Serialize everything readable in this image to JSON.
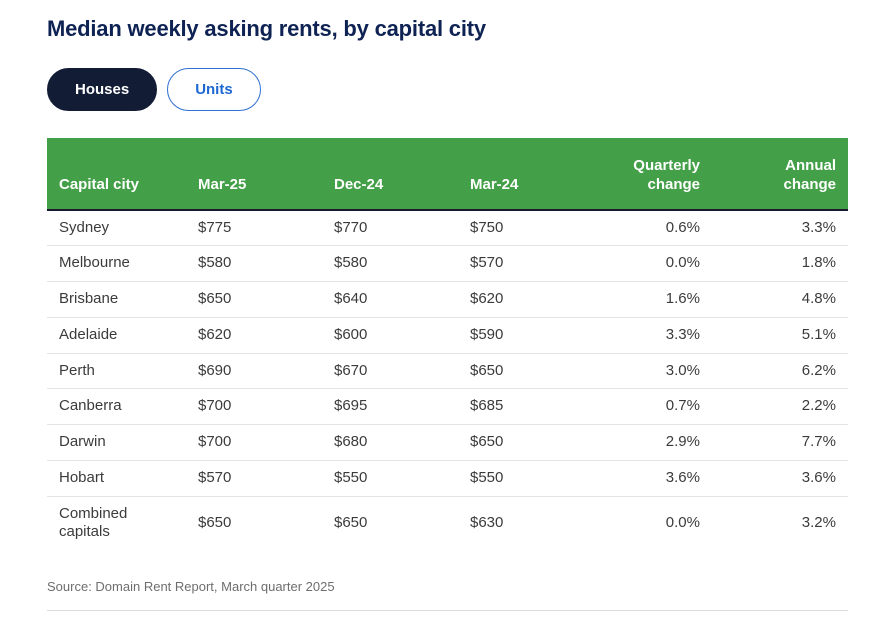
{
  "page": {
    "title": "Median weekly asking rents, by capital city",
    "source": "Source: Domain Rent Report, March quarter 2025"
  },
  "toggle": {
    "houses_label": "Houses",
    "units_label": "Units",
    "active": "Houses"
  },
  "table": {
    "columns": [
      "Capital city",
      "Mar-25",
      "Dec-24",
      "Mar-24",
      "Quarterly change",
      "Annual change"
    ],
    "rows": [
      [
        "Sydney",
        "$775",
        "$770",
        "$750",
        "0.6%",
        "3.3%"
      ],
      [
        "Melbourne",
        "$580",
        "$580",
        "$570",
        "0.0%",
        "1.8%"
      ],
      [
        "Brisbane",
        "$650",
        "$640",
        "$620",
        "1.6%",
        "4.8%"
      ],
      [
        "Adelaide",
        "$620",
        "$600",
        "$590",
        "3.3%",
        "5.1%"
      ],
      [
        "Perth",
        "$690",
        "$670",
        "$650",
        "3.0%",
        "6.2%"
      ],
      [
        "Canberra",
        "$700",
        "$695",
        "$685",
        "0.7%",
        "2.2%"
      ],
      [
        "Darwin",
        "$700",
        "$680",
        "$650",
        "2.9%",
        "7.7%"
      ],
      [
        "Hobart",
        "$570",
        "$550",
        "$550",
        "3.6%",
        "3.6%"
      ],
      [
        "Combined capitals",
        "$650",
        "$650",
        "$630",
        "0.0%",
        "3.2%"
      ]
    ]
  },
  "colors": {
    "header_green": "#44a048",
    "title_navy": "#0e2353",
    "active_pill_navy": "#131c35",
    "link_blue": "#1e68d2",
    "header_border_dark": "#1a1a2e",
    "row_border_gray": "#e4e4e4",
    "source_gray": "#6e6e6e"
  }
}
